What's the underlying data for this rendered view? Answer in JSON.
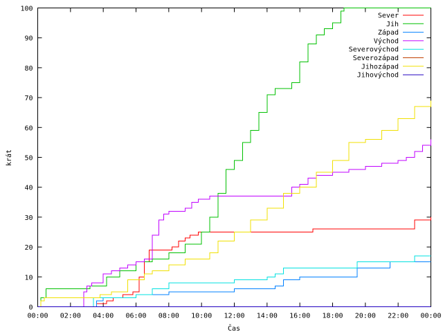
{
  "chart_data": {
    "type": "line",
    "title": "",
    "xlabel": "Čas",
    "ylabel": "krát",
    "xlim": [
      0,
      24
    ],
    "ylim": [
      0,
      100
    ],
    "grid": false,
    "legend_placement": "top-right",
    "x_ticks": [
      {
        "value": 0,
        "label": "00:00"
      },
      {
        "value": 2,
        "label": "02:00"
      },
      {
        "value": 4,
        "label": "04:00"
      },
      {
        "value": 6,
        "label": "06:00"
      },
      {
        "value": 8,
        "label": "08:00"
      },
      {
        "value": 10,
        "label": "10:00"
      },
      {
        "value": 12,
        "label": "12:00"
      },
      {
        "value": 14,
        "label": "14:00"
      },
      {
        "value": 16,
        "label": "16:00"
      },
      {
        "value": 18,
        "label": "18:00"
      },
      {
        "value": 20,
        "label": "20:00"
      },
      {
        "value": 22,
        "label": "22:00"
      },
      {
        "value": 24,
        "label": "00:00"
      }
    ],
    "y_ticks": [
      0,
      10,
      20,
      30,
      40,
      50,
      60,
      70,
      80,
      90,
      100
    ],
    "series": [
      {
        "name": "Sever",
        "color": "#ff0000",
        "x": [
          0,
          3.6,
          4.2,
          4.6,
          5.2,
          5.8,
          6.2,
          6.5,
          6.8,
          7.3,
          8.2,
          8.6,
          9.0,
          9.3,
          9.8,
          11.0,
          13.0,
          15.0,
          16.8,
          19.0,
          21.0,
          23.0,
          24.0
        ],
        "y": [
          0,
          1,
          2,
          3,
          4,
          5,
          10,
          15,
          19,
          19,
          20,
          22,
          23,
          24,
          25,
          25,
          25,
          25,
          26,
          26,
          26,
          29,
          30
        ]
      },
      {
        "name": "Jih",
        "color": "#00c000",
        "x": [
          0,
          0.2,
          0.5,
          2.6,
          3.2,
          4.2,
          5.0,
          6.0,
          7.0,
          8.0,
          9.0,
          10.0,
          10.5,
          11.0,
          11.5,
          12.0,
          12.5,
          13.0,
          13.5,
          14.0,
          14.5,
          15.0,
          15.5,
          16.0,
          16.5,
          17.0,
          17.5,
          18.0,
          18.5,
          18.7,
          24.0
        ],
        "y": [
          0,
          3,
          6,
          6,
          7,
          10,
          12,
          15,
          16,
          18,
          21,
          25,
          30,
          38,
          46,
          49,
          55,
          59,
          65,
          71,
          73,
          73,
          75,
          82,
          88,
          91,
          93,
          95,
          99,
          100,
          100
        ]
      },
      {
        "name": "Západ",
        "color": "#0080ff",
        "x": [
          0,
          3.2,
          3.6,
          4.0,
          6.0,
          8.0,
          10.0,
          12.0,
          13.0,
          14.5,
          15.0,
          15.5,
          16.0,
          19.0,
          19.5,
          21.0,
          21.5,
          23.0,
          24.0
        ],
        "y": [
          0,
          0,
          2,
          3,
          4,
          5,
          5,
          6,
          6,
          7,
          9,
          9,
          10,
          10,
          13,
          13,
          15,
          15,
          15
        ]
      },
      {
        "name": "Východ",
        "color": "#c000ff",
        "x": [
          0,
          2.8,
          3.0,
          3.3,
          4.0,
          4.5,
          5.0,
          5.5,
          6.0,
          6.5,
          7.0,
          7.4,
          7.7,
          8.0,
          9.0,
          9.4,
          9.8,
          10.5,
          11.0,
          13.0,
          15.0,
          15.5,
          16.0,
          16.5,
          17.0,
          18.0,
          19.0,
          20.0,
          21.0,
          22.0,
          22.5,
          23.0,
          23.5,
          24.0
        ],
        "y": [
          0,
          5,
          7,
          8,
          11,
          12,
          13,
          14,
          15,
          16,
          24,
          29,
          31,
          32,
          33,
          35,
          36,
          37,
          37,
          37,
          37,
          40,
          41,
          43,
          44,
          45,
          46,
          47,
          48,
          49,
          50,
          52,
          54,
          56
        ]
      },
      {
        "name": "Severovýchod",
        "color": "#00e0e0",
        "x": [
          0,
          3.0,
          3.4,
          4.0,
          6.0,
          7.0,
          8.0,
          10.0,
          12.0,
          14.0,
          14.5,
          15.0,
          18.0,
          19.5,
          21.0,
          23.0,
          24.0
        ],
        "y": [
          0,
          0,
          3,
          3,
          4,
          6,
          8,
          8,
          9,
          10,
          11,
          13,
          13,
          15,
          15,
          17,
          17
        ]
      },
      {
        "name": "Severozápad",
        "color": "#c04000",
        "x": [
          0,
          24.0
        ],
        "y": [
          0,
          0
        ]
      },
      {
        "name": "Jihozápad",
        "color": "#f0e000",
        "x": [
          0,
          0.2,
          0.4,
          3.0,
          3.8,
          4.5,
          5.5,
          6.5,
          7.0,
          8.0,
          9.0,
          10.0,
          10.5,
          11.0,
          12.0,
          13.0,
          14.0,
          15.0,
          16.0,
          17.0,
          18.0,
          19.0,
          20.0,
          21.0,
          22.0,
          23.0,
          24.0
        ],
        "y": [
          0,
          2,
          3,
          3,
          4,
          5,
          9,
          11,
          12,
          14,
          16,
          16,
          18,
          22,
          25,
          29,
          33,
          38,
          40,
          45,
          49,
          55,
          56,
          59,
          63,
          67,
          69
        ]
      },
      {
        "name": "Jihovýchod",
        "color": "#2000c0",
        "x": [
          0,
          24.0
        ],
        "y": [
          0,
          0
        ]
      }
    ]
  }
}
